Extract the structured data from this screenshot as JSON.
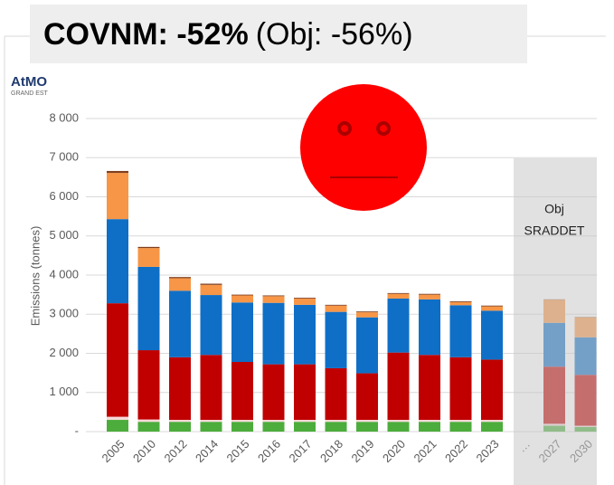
{
  "chart_data": {
    "type": "stacked_bar",
    "title": "COVNM: -52%",
    "subtitle": "(Obj: -56%)",
    "logo": [
      "AtMO",
      "GRAND EST"
    ],
    "y_label": "Emissions (tonnes)",
    "annotation": [
      "Obj",
      "SRADDET"
    ],
    "categories": [
      "2005",
      "2010",
      "2012",
      "2014",
      "2015",
      "2016",
      "2017",
      "2018",
      "2019",
      "2020",
      "2021",
      "2022",
      "2023",
      "…",
      "2027",
      "2030"
    ],
    "series": [
      {
        "color": "#4cad3c",
        "values": [
          300,
          250,
          250,
          250,
          250,
          250,
          250,
          250,
          250,
          250,
          250,
          250,
          250,
          null,
          150,
          120
        ]
      },
      {
        "color": "#f7d9d9",
        "values": [
          80,
          60,
          50,
          50,
          50,
          50,
          50,
          50,
          50,
          50,
          50,
          50,
          50,
          null,
          50,
          30
        ]
      },
      {
        "color": "#c00000",
        "values": [
          2900,
          1770,
          1600,
          1660,
          1480,
          1420,
          1420,
          1320,
          1190,
          1720,
          1660,
          1600,
          1540,
          null,
          1460,
          1300
        ]
      },
      {
        "color": "#0f6fc6",
        "values": [
          2150,
          2130,
          1700,
          1530,
          1520,
          1570,
          1520,
          1440,
          1430,
          1380,
          1420,
          1330,
          1250,
          null,
          1120,
          960
        ]
      },
      {
        "color": "#f79646",
        "values": [
          1180,
          480,
          320,
          260,
          180,
          170,
          160,
          160,
          130,
          120,
          120,
          80,
          110,
          null,
          590,
          510
        ]
      },
      {
        "color": "#7f3f1f",
        "values": [
          50,
          30,
          30,
          30,
          20,
          20,
          20,
          20,
          20,
          20,
          20,
          20,
          20,
          null,
          10,
          10
        ]
      }
    ],
    "ylim": [
      0,
      8000
    ],
    "yticks": [
      {
        "value": 0,
        "label": "-"
      },
      {
        "value": 1000,
        "label": "1 000"
      },
      {
        "value": 2000,
        "label": "2 000"
      },
      {
        "value": 3000,
        "label": "3 000"
      },
      {
        "value": 4000,
        "label": "4 000"
      },
      {
        "value": 5000,
        "label": "5 000"
      },
      {
        "value": 6000,
        "label": "6 000"
      },
      {
        "value": 7000,
        "label": "7 000"
      },
      {
        "value": 8000,
        "label": "8 000"
      }
    ],
    "grid": true
  }
}
